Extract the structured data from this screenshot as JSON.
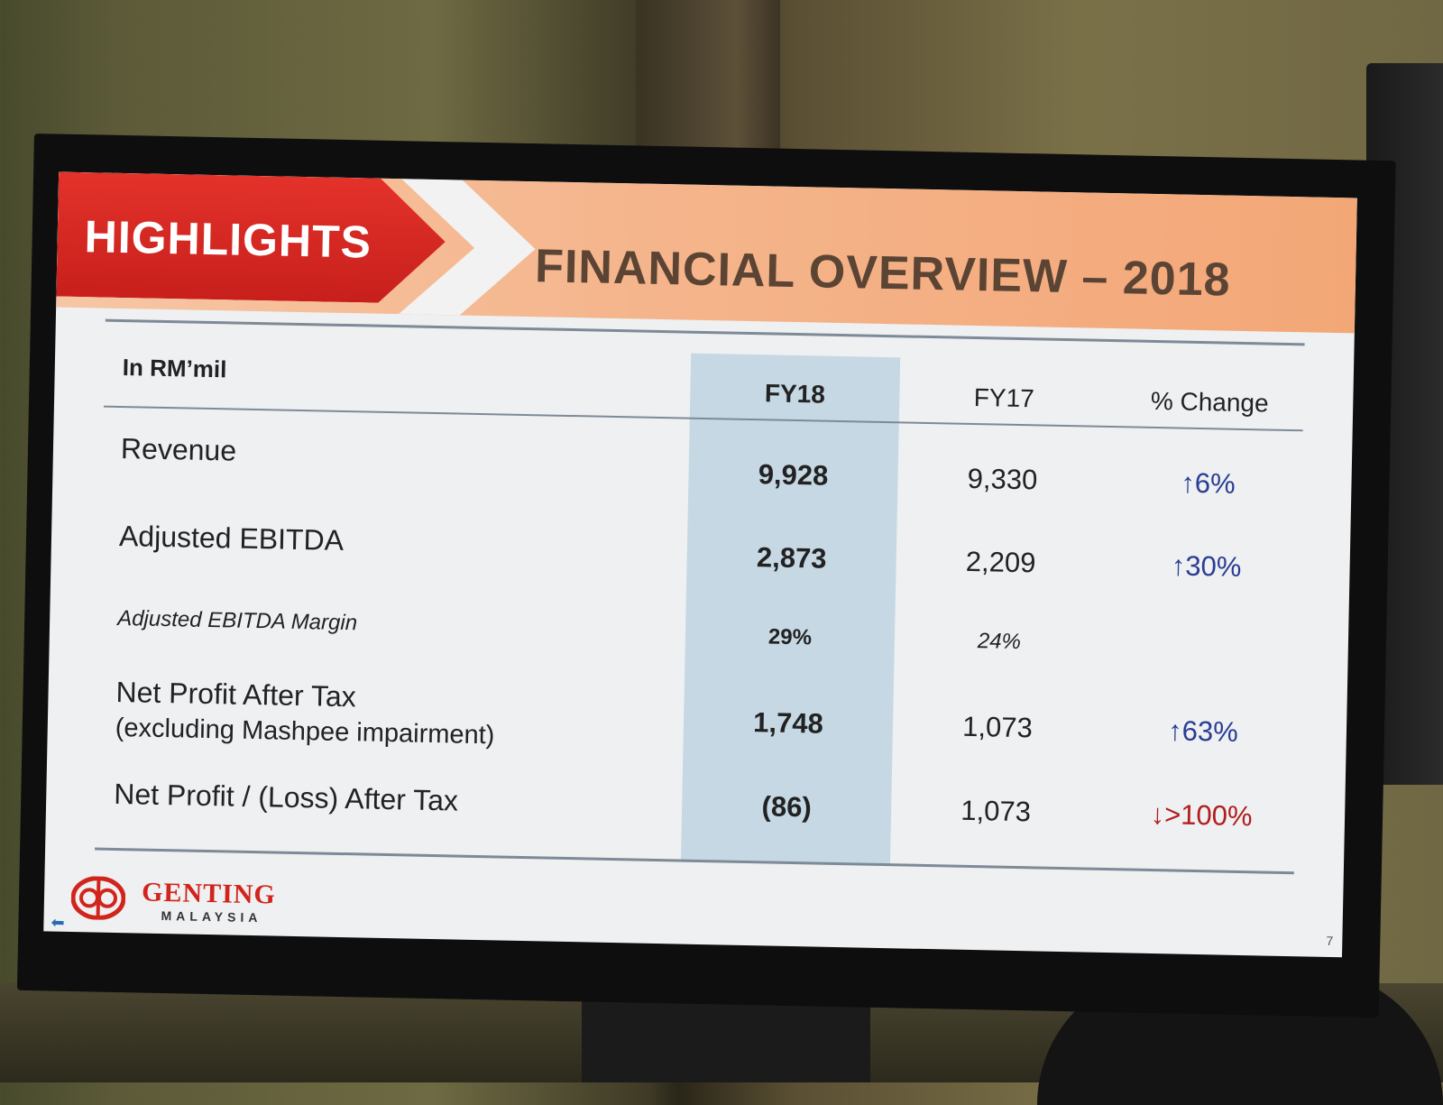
{
  "slide": {
    "section_tab": "HIGHLIGHTS",
    "title": "FINANCIAL OVERVIEW – 2018",
    "unit_label": "In RM’mil",
    "columns": [
      "FY18",
      "FY17",
      "% Change"
    ],
    "rows": [
      {
        "label": "Revenue",
        "fy18": "9,928",
        "fy17": "9,330",
        "change": "↑6%"
      },
      {
        "label": "Adjusted EBITDA",
        "fy18": "2,873",
        "fy17": "2,209",
        "change": "↑30%"
      },
      {
        "label": "Adjusted EBITDA Margin",
        "fy18": "29%",
        "fy17": "24%",
        "change": ""
      },
      {
        "label": "Net Profit After Tax",
        "sublabel": "(excluding Mashpee impairment)",
        "fy18": "1,748",
        "fy17": "1,073",
        "change": "↑63%"
      },
      {
        "label": "Net Profit / (Loss) After Tax",
        "fy18": "(86)",
        "fy17": "1,073",
        "change": "↓>100%"
      }
    ],
    "logo": {
      "name": "GENTING",
      "sub": "MALAYSIA"
    },
    "page_number": "7"
  },
  "colors": {
    "accent_red": "#d2241c",
    "highlight_column": "#c5d8e4",
    "increase": "#2a3d94",
    "decrease": "#b21c1c"
  }
}
